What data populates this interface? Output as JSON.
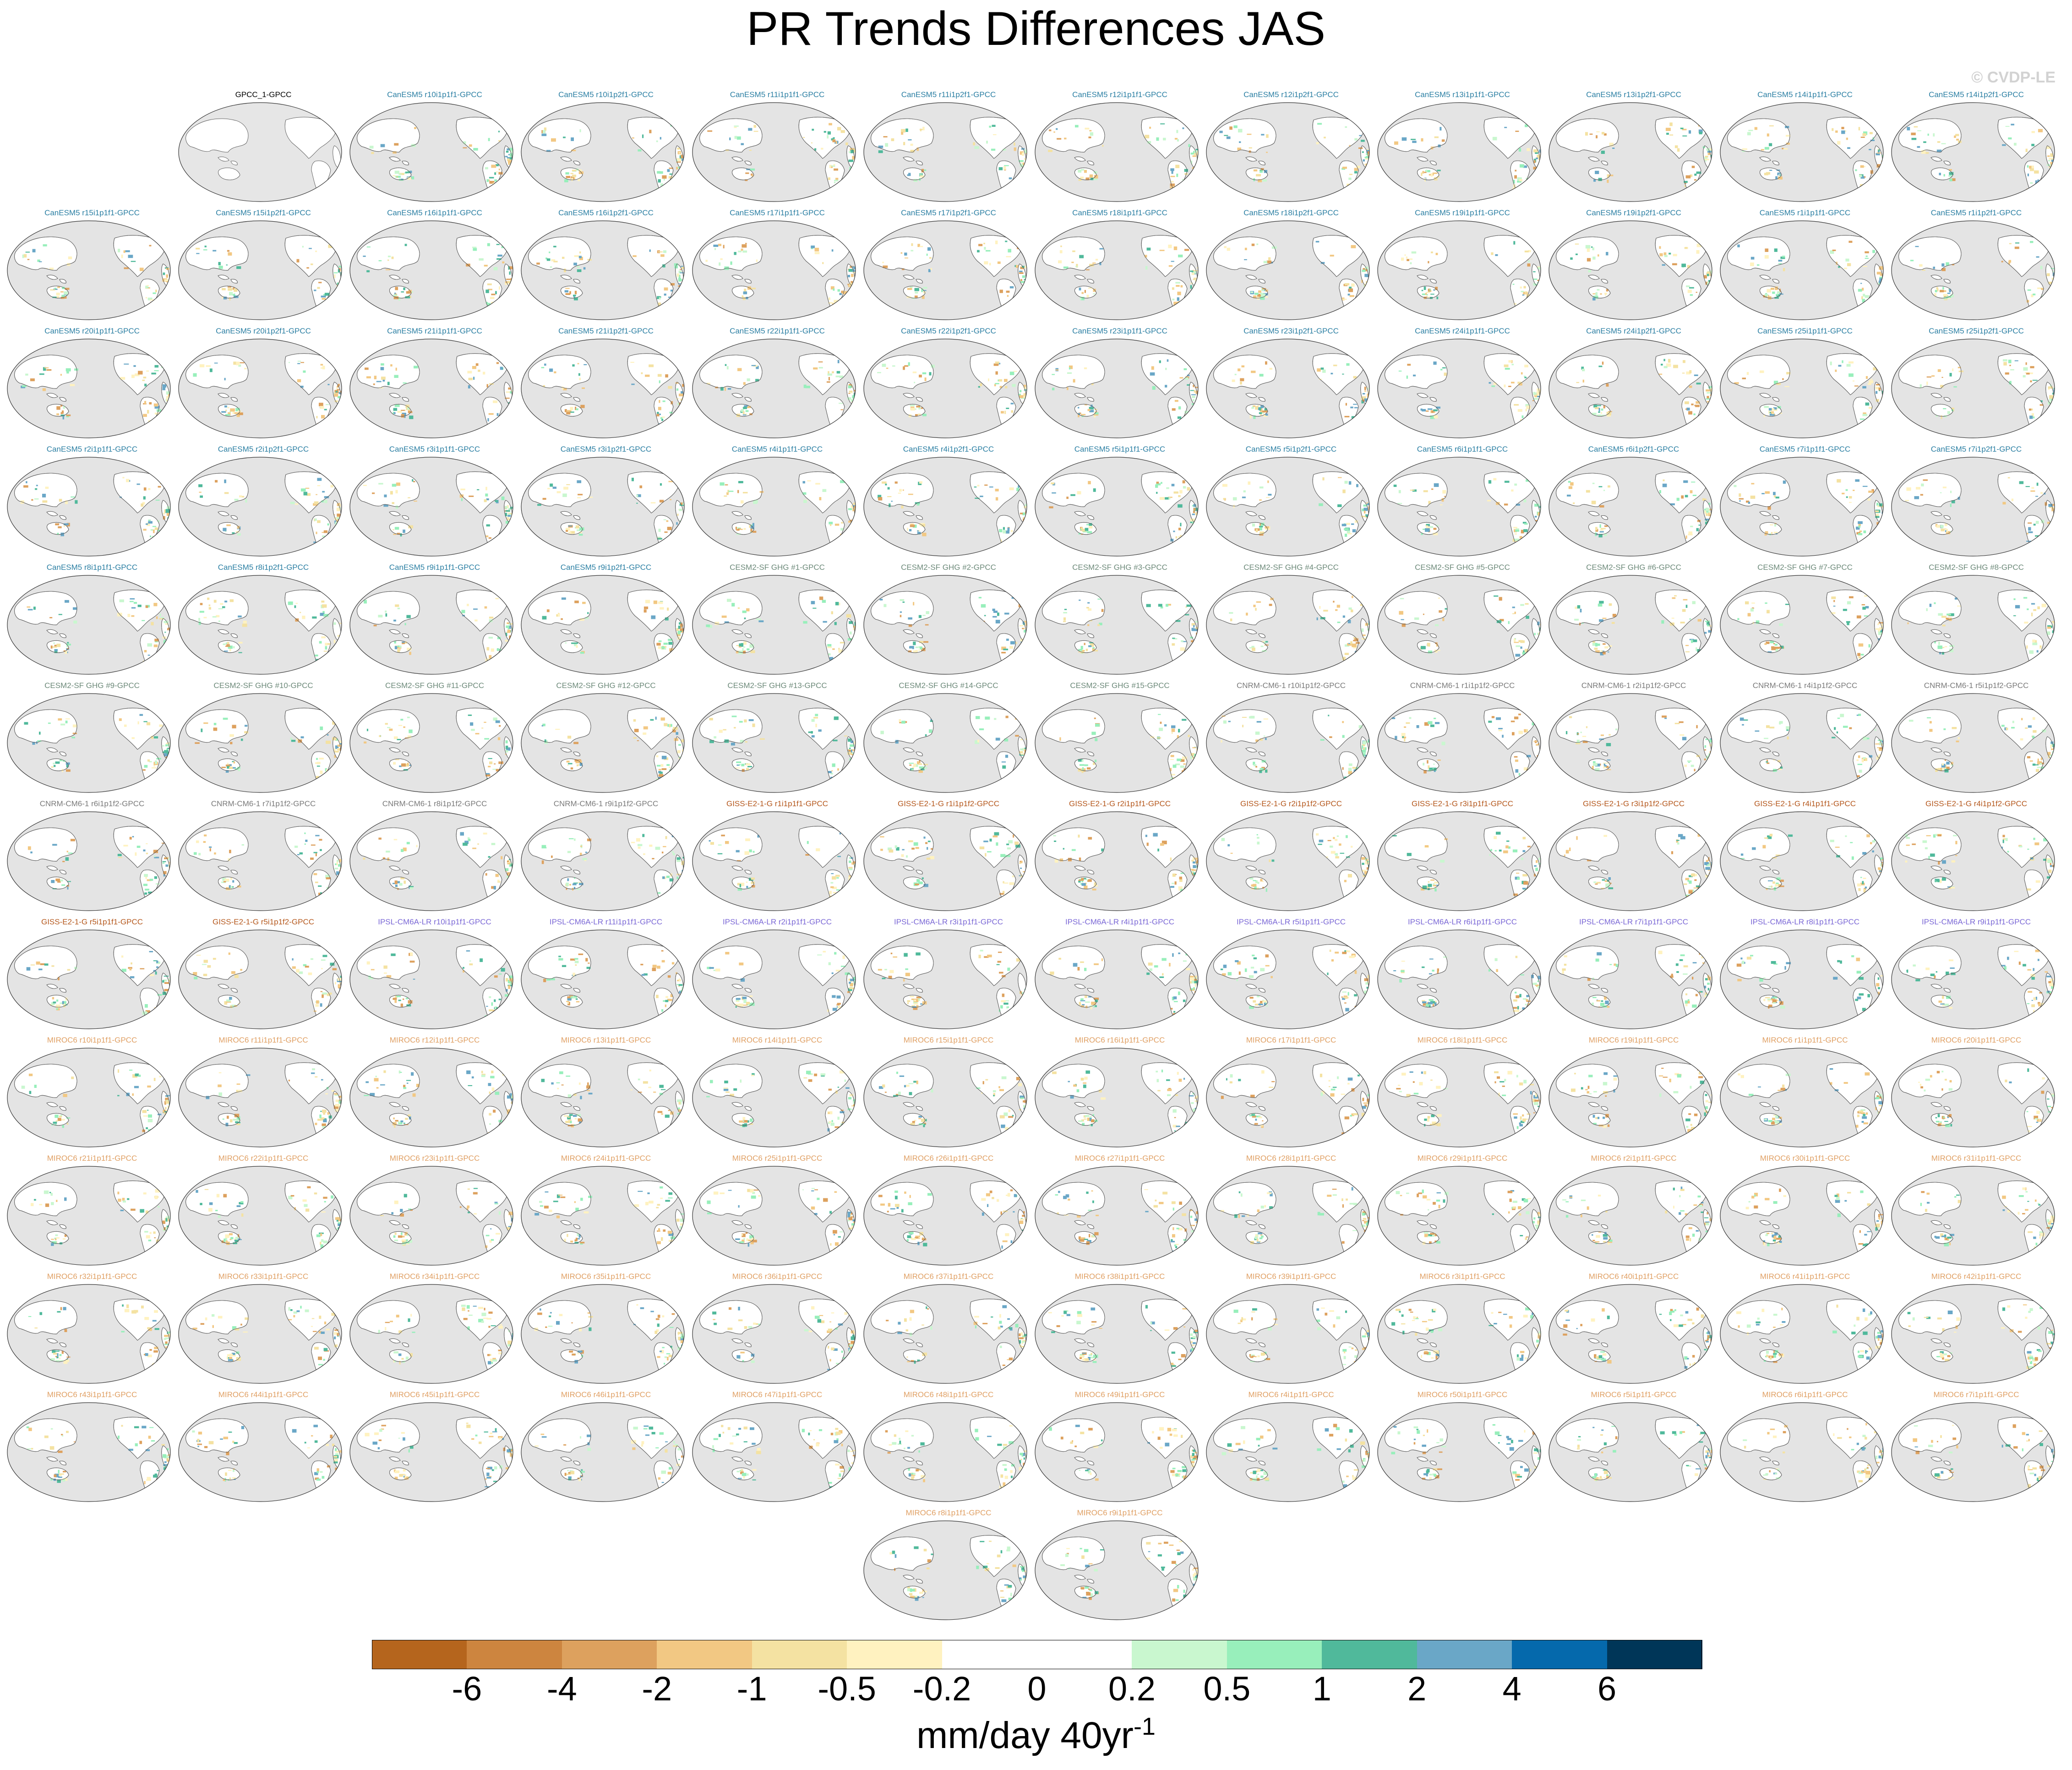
{
  "title": "PR Trends Differences JAS",
  "watermark": "© CVDP-LE",
  "colorbar": {
    "colors": [
      "#b5651d",
      "#cd853f",
      "#dda15e",
      "#f2c883",
      "#f4e2a2",
      "#fff2c0",
      "#ffffff",
      "#ffffff",
      "#c9f7cf",
      "#98efbb",
      "#50b99b",
      "#6aa7c7",
      "#0569ac",
      "#003658"
    ],
    "tick_labels": [
      "-6",
      "-4",
      "-2",
      "-1",
      "-0.5",
      "-0.2",
      "0",
      "0.2",
      "0.5",
      "1",
      "2",
      "4",
      "6"
    ],
    "units_main": "mm/day 40yr",
    "units_exp": "-1"
  },
  "panels": [
    {
      "label": "GPCC_1-GPCC",
      "color": "#000000",
      "blank": true
    },
    {
      "label": "CanESM5 r10i1p1f1-GPCC",
      "color": "#2b7fa3"
    },
    {
      "label": "CanESM5 r10i1p2f1-GPCC",
      "color": "#2b7fa3"
    },
    {
      "label": "CanESM5 r11i1p1f1-GPCC",
      "color": "#2b7fa3"
    },
    {
      "label": "CanESM5 r11i1p2f1-GPCC",
      "color": "#2b7fa3"
    },
    {
      "label": "CanESM5 r12i1p1f1-GPCC",
      "color": "#2b7fa3"
    },
    {
      "label": "CanESM5 r12i1p2f1-GPCC",
      "color": "#2b7fa3"
    },
    {
      "label": "CanESM5 r13i1p1f1-GPCC",
      "color": "#2b7fa3"
    },
    {
      "label": "CanESM5 r13i1p2f1-GPCC",
      "color": "#2b7fa3"
    },
    {
      "label": "CanESM5 r14i1p1f1-GPCC",
      "color": "#2b7fa3"
    },
    {
      "label": "CanESM5 r14i1p2f1-GPCC",
      "color": "#2b7fa3"
    },
    {
      "label": "CanESM5 r15i1p1f1-GPCC",
      "color": "#2b7fa3"
    },
    {
      "label": "CanESM5 r15i1p2f1-GPCC",
      "color": "#2b7fa3"
    },
    {
      "label": "CanESM5 r16i1p1f1-GPCC",
      "color": "#2b7fa3"
    },
    {
      "label": "CanESM5 r16i1p2f1-GPCC",
      "color": "#2b7fa3"
    },
    {
      "label": "CanESM5 r17i1p1f1-GPCC",
      "color": "#2b7fa3"
    },
    {
      "label": "CanESM5 r17i1p2f1-GPCC",
      "color": "#2b7fa3"
    },
    {
      "label": "CanESM5 r18i1p1f1-GPCC",
      "color": "#2b7fa3"
    },
    {
      "label": "CanESM5 r18i1p2f1-GPCC",
      "color": "#2b7fa3"
    },
    {
      "label": "CanESM5 r19i1p1f1-GPCC",
      "color": "#2b7fa3"
    },
    {
      "label": "CanESM5 r19i1p2f1-GPCC",
      "color": "#2b7fa3"
    },
    {
      "label": "CanESM5 r1i1p1f1-GPCC",
      "color": "#2b7fa3"
    },
    {
      "label": "CanESM5 r1i1p2f1-GPCC",
      "color": "#2b7fa3"
    },
    {
      "label": "CanESM5 r20i1p1f1-GPCC",
      "color": "#2b7fa3"
    },
    {
      "label": "CanESM5 r20i1p2f1-GPCC",
      "color": "#2b7fa3"
    },
    {
      "label": "CanESM5 r21i1p1f1-GPCC",
      "color": "#2b7fa3"
    },
    {
      "label": "CanESM5 r21i1p2f1-GPCC",
      "color": "#2b7fa3"
    },
    {
      "label": "CanESM5 r22i1p1f1-GPCC",
      "color": "#2b7fa3"
    },
    {
      "label": "CanESM5 r22i1p2f1-GPCC",
      "color": "#2b7fa3"
    },
    {
      "label": "CanESM5 r23i1p1f1-GPCC",
      "color": "#2b7fa3"
    },
    {
      "label": "CanESM5 r23i1p2f1-GPCC",
      "color": "#2b7fa3"
    },
    {
      "label": "CanESM5 r24i1p1f1-GPCC",
      "color": "#2b7fa3"
    },
    {
      "label": "CanESM5 r24i1p2f1-GPCC",
      "color": "#2b7fa3"
    },
    {
      "label": "CanESM5 r25i1p1f1-GPCC",
      "color": "#2b7fa3"
    },
    {
      "label": "CanESM5 r25i1p2f1-GPCC",
      "color": "#2b7fa3"
    },
    {
      "label": "CanESM5 r2i1p1f1-GPCC",
      "color": "#2b7fa3"
    },
    {
      "label": "CanESM5 r2i1p2f1-GPCC",
      "color": "#2b7fa3"
    },
    {
      "label": "CanESM5 r3i1p1f1-GPCC",
      "color": "#2b7fa3"
    },
    {
      "label": "CanESM5 r3i1p2f1-GPCC",
      "color": "#2b7fa3"
    },
    {
      "label": "CanESM5 r4i1p1f1-GPCC",
      "color": "#2b7fa3"
    },
    {
      "label": "CanESM5 r4i1p2f1-GPCC",
      "color": "#2b7fa3"
    },
    {
      "label": "CanESM5 r5i1p1f1-GPCC",
      "color": "#2b7fa3"
    },
    {
      "label": "CanESM5 r5i1p2f1-GPCC",
      "color": "#2b7fa3"
    },
    {
      "label": "CanESM5 r6i1p1f1-GPCC",
      "color": "#2b7fa3"
    },
    {
      "label": "CanESM5 r6i1p2f1-GPCC",
      "color": "#2b7fa3"
    },
    {
      "label": "CanESM5 r7i1p1f1-GPCC",
      "color": "#2b7fa3"
    },
    {
      "label": "CanESM5 r7i1p2f1-GPCC",
      "color": "#2b7fa3"
    },
    {
      "label": "CanESM5 r8i1p1f1-GPCC",
      "color": "#2b7fa3"
    },
    {
      "label": "CanESM5 r8i1p2f1-GPCC",
      "color": "#2b7fa3"
    },
    {
      "label": "CanESM5 r9i1p1f1-GPCC",
      "color": "#2b7fa3"
    },
    {
      "label": "CanESM5 r9i1p2f1-GPCC",
      "color": "#2b7fa3"
    },
    {
      "label": "CESM2-SF GHG #1-GPCC",
      "color": "#6d8a7a"
    },
    {
      "label": "CESM2-SF GHG #2-GPCC",
      "color": "#6d8a7a"
    },
    {
      "label": "CESM2-SF GHG #3-GPCC",
      "color": "#6d8a7a"
    },
    {
      "label": "CESM2-SF GHG #4-GPCC",
      "color": "#6d8a7a"
    },
    {
      "label": "CESM2-SF GHG #5-GPCC",
      "color": "#6d8a7a"
    },
    {
      "label": "CESM2-SF GHG #6-GPCC",
      "color": "#6d8a7a"
    },
    {
      "label": "CESM2-SF GHG #7-GPCC",
      "color": "#6d8a7a"
    },
    {
      "label": "CESM2-SF GHG #8-GPCC",
      "color": "#6d8a7a"
    },
    {
      "label": "CESM2-SF GHG #9-GPCC",
      "color": "#6d8a7a"
    },
    {
      "label": "CESM2-SF GHG #10-GPCC",
      "color": "#6d8a7a"
    },
    {
      "label": "CESM2-SF GHG #11-GPCC",
      "color": "#6d8a7a"
    },
    {
      "label": "CESM2-SF GHG #12-GPCC",
      "color": "#6d8a7a"
    },
    {
      "label": "CESM2-SF GHG #13-GPCC",
      "color": "#6d8a7a"
    },
    {
      "label": "CESM2-SF GHG #14-GPCC",
      "color": "#6d8a7a"
    },
    {
      "label": "CESM2-SF GHG #15-GPCC",
      "color": "#6d8a7a"
    },
    {
      "label": "CNRM-CM6-1 r10i1p1f2-GPCC",
      "color": "#7a7a7a"
    },
    {
      "label": "CNRM-CM6-1 r1i1p1f2-GPCC",
      "color": "#7a7a7a"
    },
    {
      "label": "CNRM-CM6-1 r2i1p1f2-GPCC",
      "color": "#7a7a7a"
    },
    {
      "label": "CNRM-CM6-1 r4i1p1f2-GPCC",
      "color": "#7a7a7a"
    },
    {
      "label": "CNRM-CM6-1 r5i1p1f2-GPCC",
      "color": "#7a7a7a"
    },
    {
      "label": "CNRM-CM6-1 r6i1p1f2-GPCC",
      "color": "#7a7a7a"
    },
    {
      "label": "CNRM-CM6-1 r7i1p1f2-GPCC",
      "color": "#7a7a7a"
    },
    {
      "label": "CNRM-CM6-1 r8i1p1f2-GPCC",
      "color": "#7a7a7a"
    },
    {
      "label": "CNRM-CM6-1 r9i1p1f2-GPCC",
      "color": "#7a7a7a"
    },
    {
      "label": "GISS-E2-1-G r1i1p1f1-GPCC",
      "color": "#b5581d"
    },
    {
      "label": "GISS-E2-1-G r1i1p1f2-GPCC",
      "color": "#b5581d"
    },
    {
      "label": "GISS-E2-1-G r2i1p1f1-GPCC",
      "color": "#b5581d"
    },
    {
      "label": "GISS-E2-1-G r2i1p1f2-GPCC",
      "color": "#b5581d"
    },
    {
      "label": "GISS-E2-1-G r3i1p1f1-GPCC",
      "color": "#b5581d"
    },
    {
      "label": "GISS-E2-1-G r3i1p1f2-GPCC",
      "color": "#b5581d"
    },
    {
      "label": "GISS-E2-1-G r4i1p1f1-GPCC",
      "color": "#b5581d"
    },
    {
      "label": "GISS-E2-1-G r4i1p1f2-GPCC",
      "color": "#b5581d"
    },
    {
      "label": "GISS-E2-1-G r5i1p1f1-GPCC",
      "color": "#b5581d"
    },
    {
      "label": "GISS-E2-1-G r5i1p1f2-GPCC",
      "color": "#b5581d"
    },
    {
      "label": "IPSL-CM6A-LR r10i1p1f1-GPCC",
      "color": "#7b68d6"
    },
    {
      "label": "IPSL-CM6A-LR r11i1p1f1-GPCC",
      "color": "#7b68d6"
    },
    {
      "label": "IPSL-CM6A-LR r2i1p1f1-GPCC",
      "color": "#7b68d6"
    },
    {
      "label": "IPSL-CM6A-LR r3i1p1f1-GPCC",
      "color": "#7b68d6"
    },
    {
      "label": "IPSL-CM6A-LR r4i1p1f1-GPCC",
      "color": "#7b68d6"
    },
    {
      "label": "IPSL-CM6A-LR r5i1p1f1-GPCC",
      "color": "#7b68d6"
    },
    {
      "label": "IPSL-CM6A-LR r6i1p1f1-GPCC",
      "color": "#7b68d6"
    },
    {
      "label": "IPSL-CM6A-LR r7i1p1f1-GPCC",
      "color": "#7b68d6"
    },
    {
      "label": "IPSL-CM6A-LR r8i1p1f1-GPCC",
      "color": "#7b68d6"
    },
    {
      "label": "IPSL-CM6A-LR r9i1p1f1-GPCC",
      "color": "#7b68d6"
    },
    {
      "label": "MIROC6 r10i1p1f1-GPCC",
      "color": "#e0a064"
    },
    {
      "label": "MIROC6 r11i1p1f1-GPCC",
      "color": "#e0a064"
    },
    {
      "label": "MIROC6 r12i1p1f1-GPCC",
      "color": "#e0a064"
    },
    {
      "label": "MIROC6 r13i1p1f1-GPCC",
      "color": "#e0a064"
    },
    {
      "label": "MIROC6 r14i1p1f1-GPCC",
      "color": "#e0a064"
    },
    {
      "label": "MIROC6 r15i1p1f1-GPCC",
      "color": "#e0a064"
    },
    {
      "label": "MIROC6 r16i1p1f1-GPCC",
      "color": "#e0a064"
    },
    {
      "label": "MIROC6 r17i1p1f1-GPCC",
      "color": "#e0a064"
    },
    {
      "label": "MIROC6 r18i1p1f1-GPCC",
      "color": "#e0a064"
    },
    {
      "label": "MIROC6 r19i1p1f1-GPCC",
      "color": "#e0a064"
    },
    {
      "label": "MIROC6 r1i1p1f1-GPCC",
      "color": "#e0a064"
    },
    {
      "label": "MIROC6 r20i1p1f1-GPCC",
      "color": "#e0a064"
    },
    {
      "label": "MIROC6 r21i1p1f1-GPCC",
      "color": "#e0a064"
    },
    {
      "label": "MIROC6 r22i1p1f1-GPCC",
      "color": "#e0a064"
    },
    {
      "label": "MIROC6 r23i1p1f1-GPCC",
      "color": "#e0a064"
    },
    {
      "label": "MIROC6 r24i1p1f1-GPCC",
      "color": "#e0a064"
    },
    {
      "label": "MIROC6 r25i1p1f1-GPCC",
      "color": "#e0a064"
    },
    {
      "label": "MIROC6 r26i1p1f1-GPCC",
      "color": "#e0a064"
    },
    {
      "label": "MIROC6 r27i1p1f1-GPCC",
      "color": "#e0a064"
    },
    {
      "label": "MIROC6 r28i1p1f1-GPCC",
      "color": "#e0a064"
    },
    {
      "label": "MIROC6 r29i1p1f1-GPCC",
      "color": "#e0a064"
    },
    {
      "label": "MIROC6 r2i1p1f1-GPCC",
      "color": "#e0a064"
    },
    {
      "label": "MIROC6 r30i1p1f1-GPCC",
      "color": "#e0a064"
    },
    {
      "label": "MIROC6 r31i1p1f1-GPCC",
      "color": "#e0a064"
    },
    {
      "label": "MIROC6 r32i1p1f1-GPCC",
      "color": "#e0a064"
    },
    {
      "label": "MIROC6 r33i1p1f1-GPCC",
      "color": "#e0a064"
    },
    {
      "label": "MIROC6 r34i1p1f1-GPCC",
      "color": "#e0a064"
    },
    {
      "label": "MIROC6 r35i1p1f1-GPCC",
      "color": "#e0a064"
    },
    {
      "label": "MIROC6 r36i1p1f1-GPCC",
      "color": "#e0a064"
    },
    {
      "label": "MIROC6 r37i1p1f1-GPCC",
      "color": "#e0a064"
    },
    {
      "label": "MIROC6 r38i1p1f1-GPCC",
      "color": "#e0a064"
    },
    {
      "label": "MIROC6 r39i1p1f1-GPCC",
      "color": "#e0a064"
    },
    {
      "label": "MIROC6 r3i1p1f1-GPCC",
      "color": "#e0a064"
    },
    {
      "label": "MIROC6 r40i1p1f1-GPCC",
      "color": "#e0a064"
    },
    {
      "label": "MIROC6 r41i1p1f1-GPCC",
      "color": "#e0a064"
    },
    {
      "label": "MIROC6 r42i1p1f1-GPCC",
      "color": "#e0a064"
    },
    {
      "label": "MIROC6 r43i1p1f1-GPCC",
      "color": "#e0a064"
    },
    {
      "label": "MIROC6 r44i1p1f1-GPCC",
      "color": "#e0a064"
    },
    {
      "label": "MIROC6 r45i1p1f1-GPCC",
      "color": "#e0a064"
    },
    {
      "label": "MIROC6 r46i1p1f1-GPCC",
      "color": "#e0a064"
    },
    {
      "label": "MIROC6 r47i1p1f1-GPCC",
      "color": "#e0a064"
    },
    {
      "label": "MIROC6 r48i1p1f1-GPCC",
      "color": "#e0a064"
    },
    {
      "label": "MIROC6 r49i1p1f1-GPCC",
      "color": "#e0a064"
    },
    {
      "label": "MIROC6 r4i1p1f1-GPCC",
      "color": "#e0a064"
    },
    {
      "label": "MIROC6 r50i1p1f1-GPCC",
      "color": "#e0a064"
    },
    {
      "label": "MIROC6 r5i1p1f1-GPCC",
      "color": "#e0a064"
    },
    {
      "label": "MIROC6 r6i1p1f1-GPCC",
      "color": "#e0a064"
    },
    {
      "label": "MIROC6 r7i1p1f1-GPCC",
      "color": "#e0a064"
    },
    {
      "label": "MIROC6 r8i1p1f1-GPCC",
      "color": "#e0a064"
    },
    {
      "label": "MIROC6 r9i1p1f1-GPCC",
      "color": "#e0a064"
    }
  ]
}
